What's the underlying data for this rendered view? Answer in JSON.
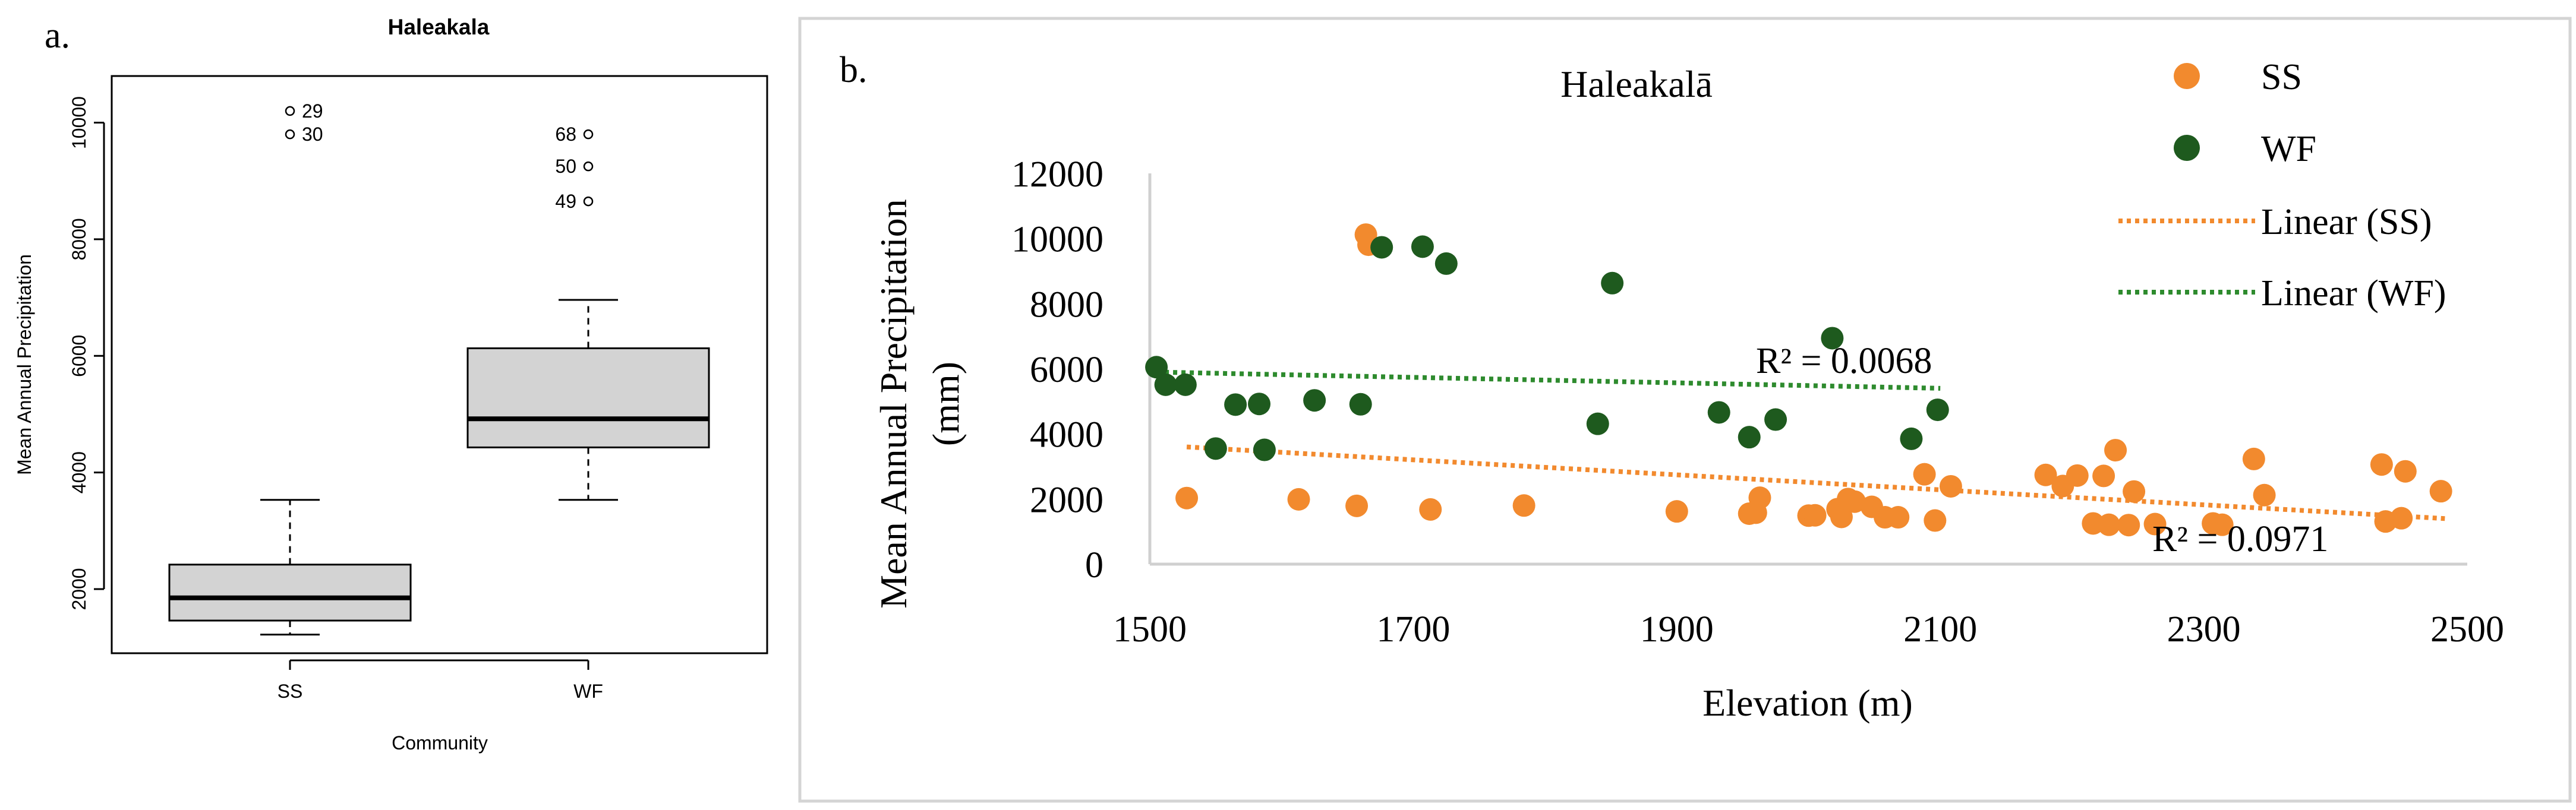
{
  "panel_a": {
    "label": "a.",
    "chart_data": {
      "type": "boxplot",
      "title": "Haleakala",
      "xlabel": "Community",
      "ylabel": "Mean Annual Precipitation",
      "ylim": [
        900,
        10800
      ],
      "yticks": [
        "2000",
        "4000",
        "6000",
        "8000",
        "10000"
      ],
      "ytick_values": [
        2000,
        4000,
        6000,
        8000,
        10000
      ],
      "categories": [
        "SS",
        "WF"
      ],
      "boxes": [
        {
          "whisker_low": 1220,
          "q1": 1460,
          "median": 1850,
          "q3": 2420,
          "whisker_high": 3530,
          "outliers": [
            {
              "value": 10200,
              "label": "29"
            },
            {
              "value": 9800,
              "label": "30"
            }
          ]
        },
        {
          "whisker_low": 3530,
          "q1": 4430,
          "median": 4920,
          "q3": 6130,
          "whisker_high": 6960,
          "outliers": [
            {
              "value": 9800,
              "label": "68"
            },
            {
              "value": 9250,
              "label": "50"
            },
            {
              "value": 8650,
              "label": "49"
            }
          ]
        }
      ]
    }
  },
  "panel_b": {
    "label": "b.",
    "chart_data": {
      "type": "scatter",
      "title": "Haleakalā",
      "xlabel": "Elevation (m)",
      "ylabel_line1": "Mean Annual Precipitation",
      "ylabel_line2": "(mm)",
      "xlim": [
        1500,
        2500
      ],
      "ylim": [
        0,
        12000
      ],
      "xticks": [
        "1500",
        "1700",
        "1900",
        "2100",
        "2300",
        "2500"
      ],
      "xtick_values": [
        1500,
        1700,
        1900,
        2100,
        2300,
        2500
      ],
      "yticks": [
        "0",
        "2000",
        "4000",
        "6000",
        "8000",
        "10000",
        "12000"
      ],
      "ytick_values": [
        0,
        2000,
        4000,
        6000,
        8000,
        10000,
        12000
      ],
      "grid": false,
      "legend_position": "top-right",
      "legend": [
        "SS",
        "WF",
        "Linear (SS)",
        "Linear (WF)"
      ],
      "series": [
        {
          "name": "SS",
          "color": "#f28a2e",
          "x": [
            1528,
            1613,
            1657,
            1664,
            1666,
            1713,
            1784,
            1900,
            1955,
            1960,
            1963,
            2000,
            2005,
            2022,
            2025,
            2030,
            2035,
            2048,
            2058,
            2068,
            2088,
            2096,
            2108,
            2180,
            2193,
            2204,
            2216,
            2224,
            2228,
            2233,
            2243,
            2247,
            2263,
            2307,
            2314,
            2338,
            2346,
            2435,
            2438,
            2450,
            2453,
            2480
          ],
          "y": [
            2030,
            1990,
            1790,
            10120,
            9810,
            1680,
            1800,
            1620,
            1550,
            1580,
            2040,
            1490,
            1500,
            1690,
            1450,
            2000,
            1920,
            1760,
            1440,
            1440,
            2760,
            1340,
            2390,
            2740,
            2400,
            2720,
            1250,
            2710,
            1210,
            3500,
            1200,
            2230,
            1230,
            1250,
            1210,
            3230,
            2120,
            3060,
            1310,
            1410,
            2850,
            2240
          ]
        },
        {
          "name": "WF",
          "color": "#1e5a1e",
          "x": [
            1505,
            1512,
            1527,
            1550,
            1565,
            1583,
            1587,
            1625,
            1660,
            1676,
            1707,
            1725,
            1840,
            1851,
            1932,
            1955,
            1975,
            2018,
            2078,
            2098
          ],
          "y": [
            6050,
            5510,
            5510,
            3550,
            4900,
            4920,
            3510,
            5030,
            4910,
            9730,
            9750,
            9230,
            4310,
            8630,
            4660,
            3900,
            4440,
            6940,
            3850,
            4740
          ]
        }
      ],
      "trendlines": [
        {
          "name": "Linear (SS)",
          "color": "#f28a2e",
          "x": [
            1528,
            2483
          ],
          "y": [
            3600,
            1400
          ],
          "r2_label": "R² = 0.0971"
        },
        {
          "name": "Linear (WF)",
          "color": "#2e8b2e",
          "x": [
            1505,
            2100
          ],
          "y": [
            5900,
            5400
          ],
          "r2_label": "R² = 0.0068"
        }
      ]
    }
  }
}
